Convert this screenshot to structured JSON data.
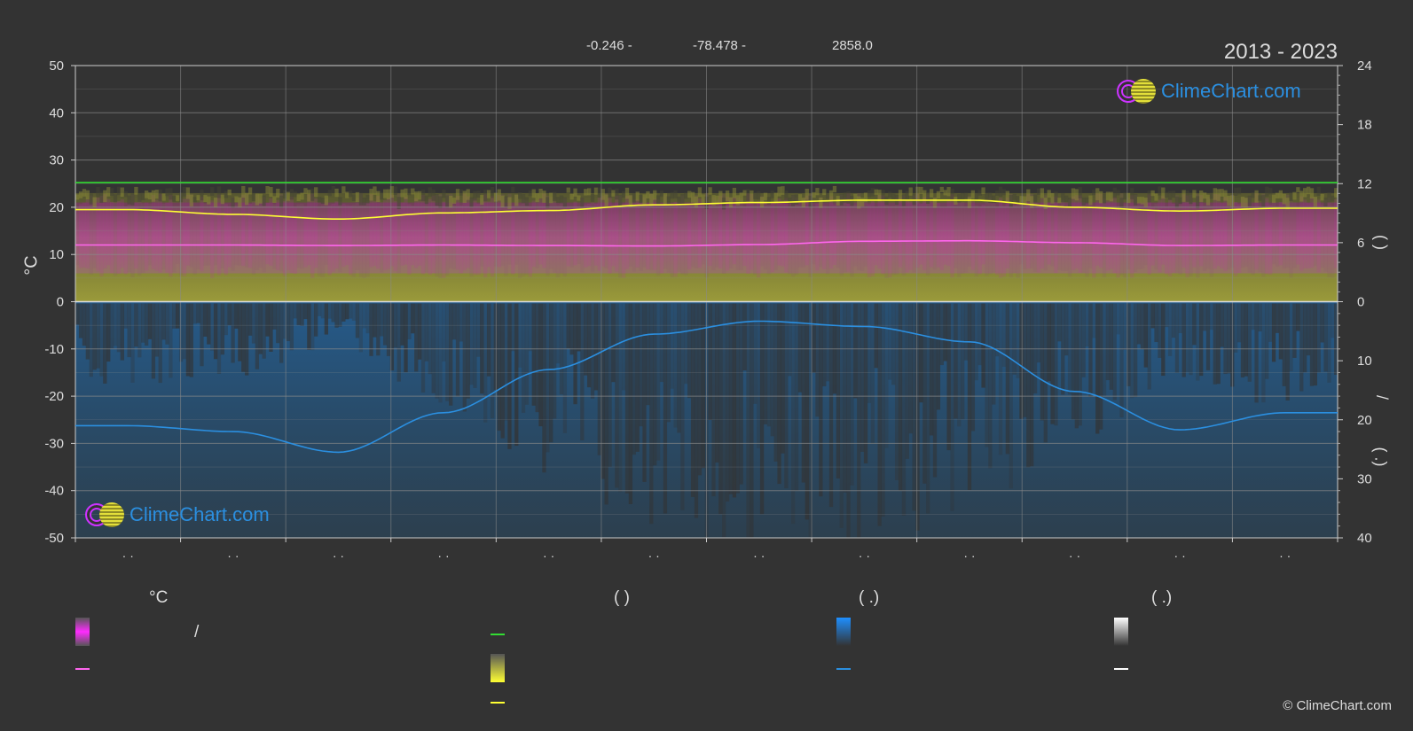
{
  "header": {
    "latitude": "-0.246 -",
    "longitude": "-78.478 -",
    "elevation": "2858.0",
    "years": "2013 - 2023"
  },
  "logo_text": "ClimeChart.com",
  "copyright": "© ClimeChart.com",
  "axis": {
    "left_label": "°C",
    "right_top_label": "(   )",
    "right_bottom_label": "/",
    "right_bottom_label2": "(   .)"
  },
  "legend": {
    "col1_title": "°C",
    "col1_row1_text": "/",
    "col2_title": "(            )",
    "col3_title": "(    .)",
    "col4_title": "(    .)"
  },
  "colors": {
    "background": "#333333",
    "grid": "#8a8a8a",
    "temp_band": "#d040c0",
    "temp_mean": "#ff66ee",
    "sunshine_band": "#c8c83a",
    "sunshine_mean": "#ffff33",
    "daylight": "#33dd33",
    "precip_band": "#1e6fb8",
    "precip_mean": "#2b8fe0",
    "snow": "#ffffff"
  },
  "chart_data": {
    "type": "line",
    "categories": [
      "· ·",
      "· ·",
      "· ·",
      "· ·",
      "· ·",
      "· ·",
      "· ·",
      "· ·",
      "· ·",
      "· ·",
      "· ·",
      "· ·"
    ],
    "left_axis": {
      "ylim": [
        -50,
        50
      ],
      "ticks": [
        50,
        40,
        30,
        20,
        10,
        0,
        -10,
        -20,
        -30,
        -40,
        -50
      ],
      "unit": "°C"
    },
    "right_axis_top": {
      "ylim": [
        0,
        24
      ],
      "ticks": [
        24,
        18,
        12,
        6,
        0
      ]
    },
    "right_axis_bottom": {
      "ylim": [
        0,
        40
      ],
      "ticks": [
        10,
        20,
        30,
        40
      ],
      "inverted": true
    },
    "grid": true,
    "series": [
      {
        "key": "daylight",
        "axis": "right_top",
        "values": [
          12.1,
          12.1,
          12.1,
          12.1,
          12.1,
          12.1,
          12.1,
          12.1,
          12.1,
          12.1,
          12.1,
          12.1
        ]
      },
      {
        "key": "sunshine_mean",
        "axis": "left",
        "values": [
          19.5,
          18.5,
          17.5,
          18.8,
          19.3,
          20.5,
          21.0,
          21.5,
          21.5,
          20.0,
          19.2,
          19.8
        ]
      },
      {
        "key": "temp_mean",
        "axis": "left",
        "values": [
          12.0,
          12.0,
          11.9,
          12.0,
          11.9,
          11.8,
          12.1,
          12.8,
          12.9,
          12.5,
          11.9,
          12.0
        ]
      },
      {
        "key": "precip_mean",
        "axis": "right_bottom",
        "values": [
          21.0,
          22.0,
          25.5,
          18.8,
          11.5,
          5.5,
          3.3,
          4.2,
          6.8,
          15.2,
          21.7,
          18.8
        ]
      }
    ],
    "bands": {
      "temp_range": {
        "low": 6,
        "high": 21
      },
      "sunshine_fill_top_mm": 12
    }
  }
}
